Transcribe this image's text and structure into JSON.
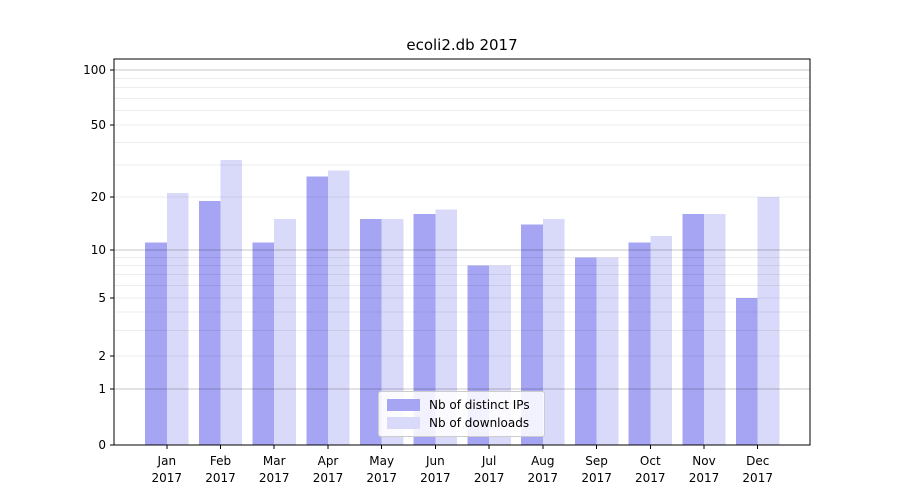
{
  "chart_data": {
    "type": "bar",
    "title": "ecoli2.db 2017",
    "categories": [
      "Jan",
      "Feb",
      "Mar",
      "Apr",
      "May",
      "Jun",
      "Jul",
      "Aug",
      "Sep",
      "Oct",
      "Nov",
      "Dec"
    ],
    "category_year": "2017",
    "series": [
      {
        "name": "Nb of distinct IPs",
        "color": "#a5a5f4",
        "values": [
          11,
          19,
          11,
          26,
          15,
          16,
          8,
          14,
          9,
          11,
          16,
          5
        ]
      },
      {
        "name": "Nb of downloads",
        "color": "#d9d9fa",
        "values": [
          21,
          32,
          15,
          28,
          15,
          17,
          8,
          15,
          9,
          12,
          16,
          20
        ]
      }
    ],
    "yaxis": {
      "ticks": [
        0,
        1,
        2,
        5,
        10,
        20,
        50,
        100
      ],
      "minor_gridlines": [
        2,
        3,
        4,
        5,
        6,
        7,
        8,
        9,
        20,
        30,
        40,
        50,
        60,
        70,
        80,
        90
      ],
      "major_gridlines": [
        1,
        10,
        100
      ],
      "scale": "log-like (linear 0-1, compressed log above)",
      "ylim": [
        0,
        116
      ]
    },
    "grid": true,
    "legend_position": "lower center-right inside plot",
    "colors": {
      "spine": "#000000",
      "grid_major": "rgba(0,0,0,0.22)",
      "grid_minor": "rgba(0,0,0,0.07)",
      "tick_label": "#000000"
    }
  }
}
